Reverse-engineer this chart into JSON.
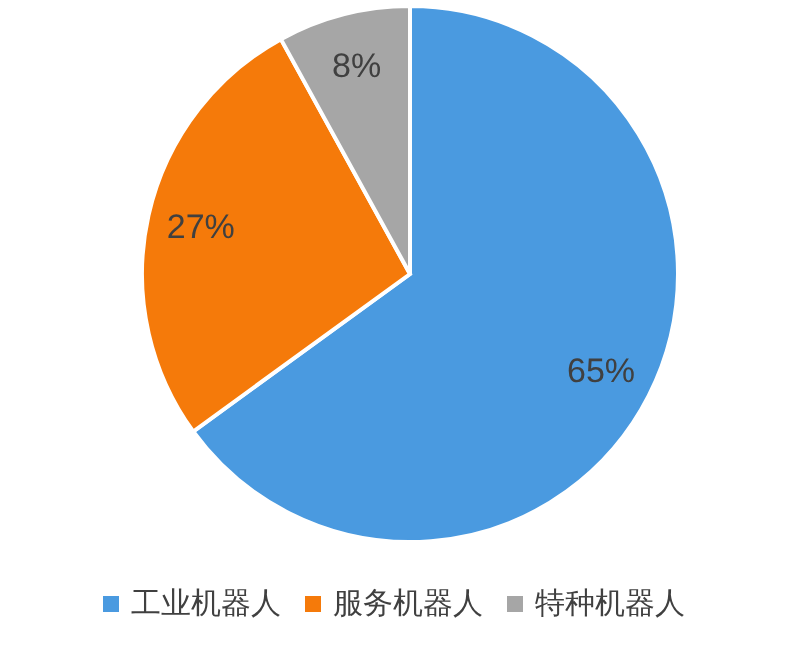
{
  "chart_data": {
    "type": "pie",
    "categories": [
      "工业机器人",
      "服务机器人",
      "特种机器人"
    ],
    "values": [
      65,
      27,
      8
    ],
    "colors": [
      "#4a9ae0",
      "#f57a0a",
      "#a6a6a6"
    ],
    "value_labels": [
      "65%",
      "27%",
      "8%"
    ],
    "legend": "bottom"
  }
}
